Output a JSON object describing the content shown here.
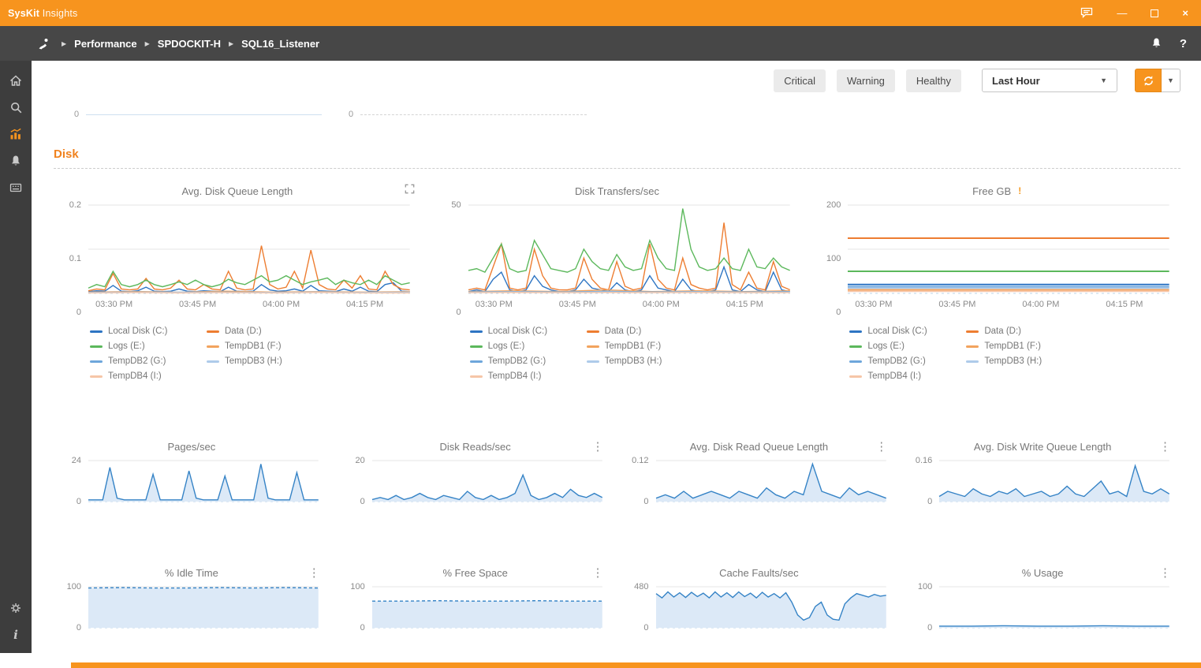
{
  "titlebar": {
    "brand_bold": "SysKit",
    "brand_rest": "Insights"
  },
  "breadcrumb": {
    "items": [
      "Performance",
      "SPDOCKIT-H",
      "SQL16_Listener"
    ]
  },
  "filters": [
    {
      "label": "Critical"
    },
    {
      "label": "Warning"
    },
    {
      "label": "Healthy"
    }
  ],
  "time_range": {
    "value": "Last Hour"
  },
  "section": {
    "title": "Disk"
  },
  "partial": {
    "zero": "0"
  },
  "icons": {
    "kebab": "⋮",
    "warning": "!",
    "caret_down": "▼",
    "separator": "▶",
    "minimize": "—",
    "close": "×",
    "help": "?",
    "info": "i"
  },
  "colors": {
    "accent_orange": "#F7941E",
    "section_orange": "#F0821E",
    "blue_series": "#3583C6",
    "blue_fill": "#DCE9F7"
  },
  "chart_data": [
    {
      "type": "line",
      "title": "Avg. Disk Queue Length",
      "icon": "expand",
      "ylim": [
        0,
        0.2
      ],
      "yticks": [
        0,
        0.1,
        0.2
      ],
      "xticks": [
        "03:30 PM",
        "03:45 PM",
        "04:00 PM",
        "04:15 PM"
      ],
      "show_legend": true,
      "legend_position": "bottom",
      "series": [
        {
          "name": "Local Disk (C:)",
          "color": "#2E75C3",
          "values": [
            0.004,
            0.006,
            0.005,
            0.018,
            0.005,
            0.004,
            0.006,
            0.014,
            0.005,
            0.004,
            0.005,
            0.01,
            0.005,
            0.004,
            0.006,
            0.005,
            0.004,
            0.014,
            0.005,
            0.004,
            0.005,
            0.02,
            0.008,
            0.005,
            0.006,
            0.01,
            0.005,
            0.018,
            0.006,
            0.005,
            0.004,
            0.01,
            0.005,
            0.014,
            0.005,
            0.004,
            0.02,
            0.024,
            0.005,
            0.004
          ]
        },
        {
          "name": "Data (D:)",
          "color": "#ED7D31",
          "values": [
            0.006,
            0.01,
            0.008,
            0.045,
            0.01,
            0.008,
            0.01,
            0.034,
            0.01,
            0.008,
            0.012,
            0.03,
            0.01,
            0.008,
            0.02,
            0.01,
            0.008,
            0.05,
            0.012,
            0.008,
            0.01,
            0.108,
            0.02,
            0.01,
            0.014,
            0.05,
            0.012,
            0.098,
            0.02,
            0.01,
            0.008,
            0.03,
            0.012,
            0.04,
            0.01,
            0.008,
            0.05,
            0.02,
            0.01,
            0.008
          ]
        },
        {
          "name": "Logs (E:)",
          "color": "#5CB85C",
          "values": [
            0.012,
            0.02,
            0.015,
            0.05,
            0.02,
            0.015,
            0.02,
            0.03,
            0.02,
            0.015,
            0.02,
            0.026,
            0.02,
            0.03,
            0.02,
            0.015,
            0.02,
            0.032,
            0.024,
            0.02,
            0.03,
            0.04,
            0.026,
            0.03,
            0.04,
            0.03,
            0.02,
            0.026,
            0.03,
            0.035,
            0.02,
            0.03,
            0.024,
            0.02,
            0.03,
            0.02,
            0.04,
            0.03,
            0.02,
            0.024
          ]
        },
        {
          "name": "TempDB1 (F:)",
          "color": "#F2A35E",
          "values": [
            0.003,
            0.004,
            0.003,
            0.005,
            0.003,
            0.004,
            0.003,
            0.004
          ]
        },
        {
          "name": "TempDB2 (G:)",
          "color": "#6EA6DB",
          "values": [
            0.002,
            0.003,
            0.002,
            0.003,
            0.002,
            0.003,
            0.002,
            0.002
          ]
        },
        {
          "name": "TempDB3 (H:)",
          "color": "#AECBEA",
          "values": [
            0.002,
            0.002,
            0.003,
            0.002,
            0.002,
            0.003,
            0.002,
            0.003
          ]
        },
        {
          "name": "TempDB4 (I:)",
          "color": "#F6C6A8",
          "values": [
            0.001,
            0.002,
            0.001,
            0.002,
            0.001,
            0.002,
            0.001,
            0.001
          ]
        }
      ]
    },
    {
      "type": "line",
      "title": "Disk Transfers/sec",
      "icon": "none",
      "ylim": [
        0,
        50
      ],
      "yticks": [
        0,
        50
      ],
      "xticks": [
        "03:30 PM",
        "03:45 PM",
        "04:00 PM",
        "04:15 PM"
      ],
      "show_legend": true,
      "legend_position": "bottom",
      "series": [
        {
          "name": "Local Disk (C:)",
          "color": "#2E75C3",
          "values": [
            1,
            2,
            1,
            8,
            12,
            2,
            1,
            2,
            10,
            4,
            2,
            1,
            1,
            2,
            8,
            3,
            2,
            1,
            6,
            2,
            1,
            2,
            10,
            3,
            2,
            1,
            8,
            2,
            1,
            1,
            2,
            15,
            2,
            1,
            5,
            2,
            1,
            12,
            2,
            1
          ]
        },
        {
          "name": "Data (D:)",
          "color": "#ED7D31",
          "values": [
            2,
            3,
            2,
            15,
            28,
            3,
            2,
            3,
            25,
            10,
            3,
            2,
            2,
            3,
            20,
            8,
            3,
            2,
            18,
            4,
            2,
            3,
            28,
            8,
            3,
            2,
            20,
            5,
            3,
            2,
            3,
            40,
            5,
            2,
            12,
            3,
            2,
            18,
            4,
            2
          ]
        },
        {
          "name": "Logs (E:)",
          "color": "#5CB85C",
          "values": [
            13,
            14,
            12,
            20,
            28,
            14,
            12,
            13,
            30,
            22,
            14,
            13,
            12,
            14,
            25,
            18,
            14,
            13,
            22,
            15,
            13,
            14,
            30,
            20,
            14,
            13,
            48,
            25,
            15,
            13,
            14,
            20,
            14,
            13,
            25,
            15,
            14,
            20,
            15,
            13
          ]
        },
        {
          "name": "TempDB1 (F:)",
          "color": "#F2A35E",
          "values": [
            1,
            1.5,
            1,
            2,
            1,
            1.5,
            1,
            1.5
          ]
        },
        {
          "name": "TempDB2 (G:)",
          "color": "#6EA6DB",
          "values": [
            0.8,
            1,
            0.8,
            1.2,
            0.8,
            1,
            0.8,
            1
          ]
        },
        {
          "name": "TempDB3 (H:)",
          "color": "#AECBEA",
          "values": [
            0.6,
            0.8,
            0.6,
            0.8,
            0.6,
            0.8,
            0.6,
            0.7
          ]
        },
        {
          "name": "TempDB4 (I:)",
          "color": "#F6C6A8",
          "values": [
            0.4,
            0.5,
            0.4,
            0.5,
            0.4,
            0.5,
            0.4,
            0.4
          ]
        }
      ]
    },
    {
      "type": "line",
      "title": "Free GB",
      "icon": "warning",
      "ylim": [
        0,
        200
      ],
      "yticks": [
        0,
        100,
        200
      ],
      "xticks": [
        "03:30 PM",
        "03:45 PM",
        "04:00 PM",
        "04:15 PM"
      ],
      "show_legend": true,
      "legend_position": "bottom",
      "series": [
        {
          "name": "Local Disk (C:)",
          "color": "#2E75C3",
          "width": 2,
          "values": [
            20,
            20,
            20,
            20,
            20,
            20,
            20,
            20
          ]
        },
        {
          "name": "Data (D:)",
          "color": "#ED7D31",
          "width": 2,
          "values": [
            125,
            125,
            125,
            125,
            125,
            125,
            125,
            125
          ]
        },
        {
          "name": "Logs (E:)",
          "color": "#5CB85C",
          "width": 2,
          "values": [
            50,
            50,
            50,
            50,
            50,
            50,
            50,
            50
          ]
        },
        {
          "name": "TempDB1 (F:)",
          "color": "#F2A35E",
          "width": 2,
          "values": [
            8,
            8,
            8,
            8,
            8,
            8,
            8,
            8
          ]
        },
        {
          "name": "TempDB2 (G:)",
          "color": "#6EA6DB",
          "width": 2,
          "values": [
            15,
            15,
            15,
            15,
            15,
            15,
            15,
            15
          ]
        },
        {
          "name": "TempDB3 (H:)",
          "color": "#AECBEA",
          "width": 2,
          "values": [
            12,
            12,
            12,
            12,
            12,
            12,
            12,
            12
          ]
        },
        {
          "name": "TempDB4 (I:)",
          "color": "#F6C6A8",
          "width": 2,
          "values": [
            5,
            5,
            5,
            5,
            5,
            5,
            5,
            5
          ]
        }
      ]
    },
    {
      "type": "area",
      "title": "Pages/sec",
      "icon": "none",
      "ylim": [
        0,
        24
      ],
      "yticks": [
        0,
        24
      ],
      "show_legend": false,
      "series": [
        {
          "name": "Pages/sec",
          "color": "#3583C6",
          "fill": "#DCE9F7",
          "values": [
            1,
            1,
            1,
            20,
            2,
            1,
            1,
            1,
            1,
            16,
            1,
            1,
            1,
            1,
            18,
            2,
            1,
            1,
            1,
            15,
            1,
            1,
            1,
            1,
            22,
            2,
            1,
            1,
            1,
            17,
            1,
            1,
            1
          ]
        }
      ]
    },
    {
      "type": "area",
      "title": "Disk Reads/sec",
      "icon": "kebab",
      "ylim": [
        0,
        20
      ],
      "yticks": [
        0,
        20
      ],
      "show_legend": false,
      "series": [
        {
          "name": "Disk Reads/sec",
          "color": "#3583C6",
          "fill": "#DCE9F7",
          "values": [
            1,
            2,
            1,
            3,
            1,
            2,
            4,
            2,
            1,
            3,
            2,
            1,
            5,
            2,
            1,
            3,
            1,
            2,
            4,
            13,
            3,
            1,
            2,
            4,
            2,
            6,
            3,
            2,
            4,
            2
          ]
        }
      ]
    },
    {
      "type": "area",
      "title": "Avg. Disk Read Queue Length",
      "icon": "kebab",
      "ylim": [
        0,
        0.12
      ],
      "yticks": [
        0,
        0.12
      ],
      "show_legend": false,
      "series": [
        {
          "name": "Avg. Disk Read Queue Length",
          "color": "#3583C6",
          "fill": "#DCE9F7",
          "values": [
            0.01,
            0.02,
            0.01,
            0.03,
            0.01,
            0.02,
            0.03,
            0.02,
            0.01,
            0.03,
            0.02,
            0.01,
            0.04,
            0.02,
            0.01,
            0.03,
            0.02,
            0.11,
            0.03,
            0.02,
            0.01,
            0.04,
            0.02,
            0.03,
            0.02,
            0.01
          ]
        }
      ]
    },
    {
      "type": "area",
      "title": "Avg. Disk Write Queue Length",
      "icon": "kebab",
      "ylim": [
        0,
        0.16
      ],
      "yticks": [
        0,
        0.16
      ],
      "show_legend": false,
      "series": [
        {
          "name": "Avg. Disk Write Queue Length",
          "color": "#3583C6",
          "fill": "#DCE9F7",
          "values": [
            0.02,
            0.04,
            0.03,
            0.02,
            0.05,
            0.03,
            0.02,
            0.04,
            0.03,
            0.05,
            0.02,
            0.03,
            0.04,
            0.02,
            0.03,
            0.06,
            0.03,
            0.02,
            0.05,
            0.08,
            0.03,
            0.04,
            0.02,
            0.14,
            0.04,
            0.03,
            0.05,
            0.03
          ]
        }
      ]
    },
    {
      "type": "area",
      "title": "% Idle Time",
      "icon": "kebab",
      "ylim": [
        0,
        100
      ],
      "yticks": [
        0,
        100
      ],
      "show_legend": false,
      "series": [
        {
          "name": "% Idle Time",
          "color": "#3583C6",
          "fill": "#DCE9F7",
          "dash": true,
          "values": [
            97,
            98,
            97,
            97,
            98,
            97,
            98,
            97
          ]
        }
      ]
    },
    {
      "type": "area",
      "title": "% Free Space",
      "icon": "kebab",
      "ylim": [
        0,
        100
      ],
      "yticks": [
        0,
        100
      ],
      "show_legend": false,
      "series": [
        {
          "name": "% Free Space",
          "color": "#3583C6",
          "fill": "#DCE9F7",
          "dash": true,
          "values": [
            65,
            65,
            66,
            65,
            65,
            66,
            65,
            65
          ]
        }
      ]
    },
    {
      "type": "area",
      "title": "Cache Faults/sec",
      "icon": "none",
      "ylim": [
        0,
        480
      ],
      "yticks": [
        0,
        480
      ],
      "show_legend": false,
      "series": [
        {
          "name": "Cache Faults/sec",
          "color": "#3583C6",
          "fill": "#DCE9F7",
          "values": [
            400,
            350,
            420,
            360,
            410,
            355,
            415,
            365,
            405,
            350,
            420,
            360,
            410,
            355,
            420,
            365,
            405,
            350,
            415,
            360,
            400,
            350,
            410,
            300,
            150,
            90,
            120,
            250,
            300,
            150,
            100,
            90,
            280,
            350,
            400,
            380,
            360,
            390,
            370,
            380
          ]
        }
      ]
    },
    {
      "type": "area",
      "title": "% Usage",
      "icon": "kebab",
      "ylim": [
        0,
        100
      ],
      "yticks": [
        0,
        100
      ],
      "show_legend": false,
      "series": [
        {
          "name": "% Usage",
          "color": "#3583C6",
          "fill": "#DCE9F7",
          "values": [
            4,
            4,
            5,
            4,
            4,
            5,
            4,
            4
          ]
        }
      ]
    }
  ]
}
